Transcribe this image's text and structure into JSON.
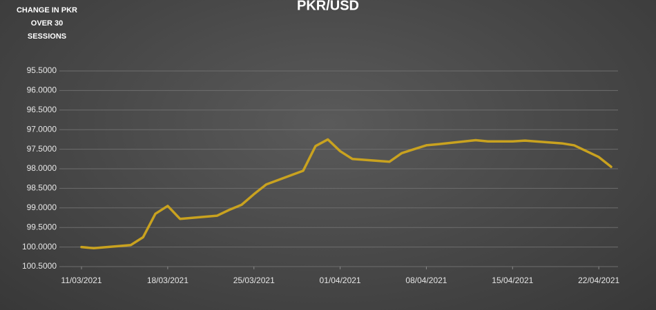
{
  "chart_data": {
    "type": "line",
    "title": "PKR/USD",
    "subtitle": "CHANGE IN PKR OVER 30 SESSIONS",
    "x": [
      "2021-03-11",
      "2021-03-12",
      "2021-03-15",
      "2021-03-16",
      "2021-03-17",
      "2021-03-18",
      "2021-03-19",
      "2021-03-22",
      "2021-03-23",
      "2021-03-24",
      "2021-03-25",
      "2021-03-26",
      "2021-03-29",
      "2021-03-30",
      "2021-03-31",
      "2021-04-01",
      "2021-04-02",
      "2021-04-05",
      "2021-04-06",
      "2021-04-07",
      "2021-04-08",
      "2021-04-09",
      "2021-04-12",
      "2021-04-13",
      "2021-04-14",
      "2021-04-15",
      "2021-04-16",
      "2021-04-19",
      "2021-04-20",
      "2021-04-21",
      "2021-04-22",
      "2021-04-23"
    ],
    "series": [
      {
        "name": "PKR/USD",
        "color": "#c9a21f",
        "values": [
          100.0,
          100.03,
          99.95,
          99.75,
          99.15,
          98.95,
          99.28,
          99.2,
          99.05,
          98.92,
          98.65,
          98.4,
          98.05,
          97.42,
          97.25,
          97.55,
          97.75,
          97.82,
          97.6,
          97.5,
          97.4,
          97.37,
          97.27,
          97.3,
          97.3,
          97.3,
          97.28,
          97.35,
          97.4,
          97.55,
          97.7,
          97.95
        ]
      }
    ],
    "xlim": [
      "2021-03-11",
      "2021-04-23"
    ],
    "xticks": [
      {
        "value": "2021-03-11",
        "label": "11/03/2021"
      },
      {
        "value": "2021-03-18",
        "label": "18/03/2021"
      },
      {
        "value": "2021-03-25",
        "label": "25/03/2021"
      },
      {
        "value": "2021-04-01",
        "label": "01/04/2021"
      },
      {
        "value": "2021-04-08",
        "label": "08/04/2021"
      },
      {
        "value": "2021-04-15",
        "label": "15/04/2021"
      },
      {
        "value": "2021-04-22",
        "label": "22/04/2021"
      }
    ],
    "ylim": [
      100.5,
      95.5
    ],
    "y_inverted": true,
    "yticks": [
      {
        "value": 95.5,
        "label": "95.5000"
      },
      {
        "value": 96,
        "label": "96.0000"
      },
      {
        "value": 96.5,
        "label": "96.5000"
      },
      {
        "value": 97,
        "label": "97.0000"
      },
      {
        "value": 97.5,
        "label": "97.5000"
      },
      {
        "value": 98,
        "label": "98.0000"
      },
      {
        "value": 98.5,
        "label": "98.5000"
      },
      {
        "value": 99,
        "label": "99.0000"
      },
      {
        "value": 99.5,
        "label": "99.5000"
      },
      {
        "value": 100,
        "label": "100.0000"
      },
      {
        "value": 100.5,
        "label": "100.5000"
      }
    ],
    "grid": true
  }
}
